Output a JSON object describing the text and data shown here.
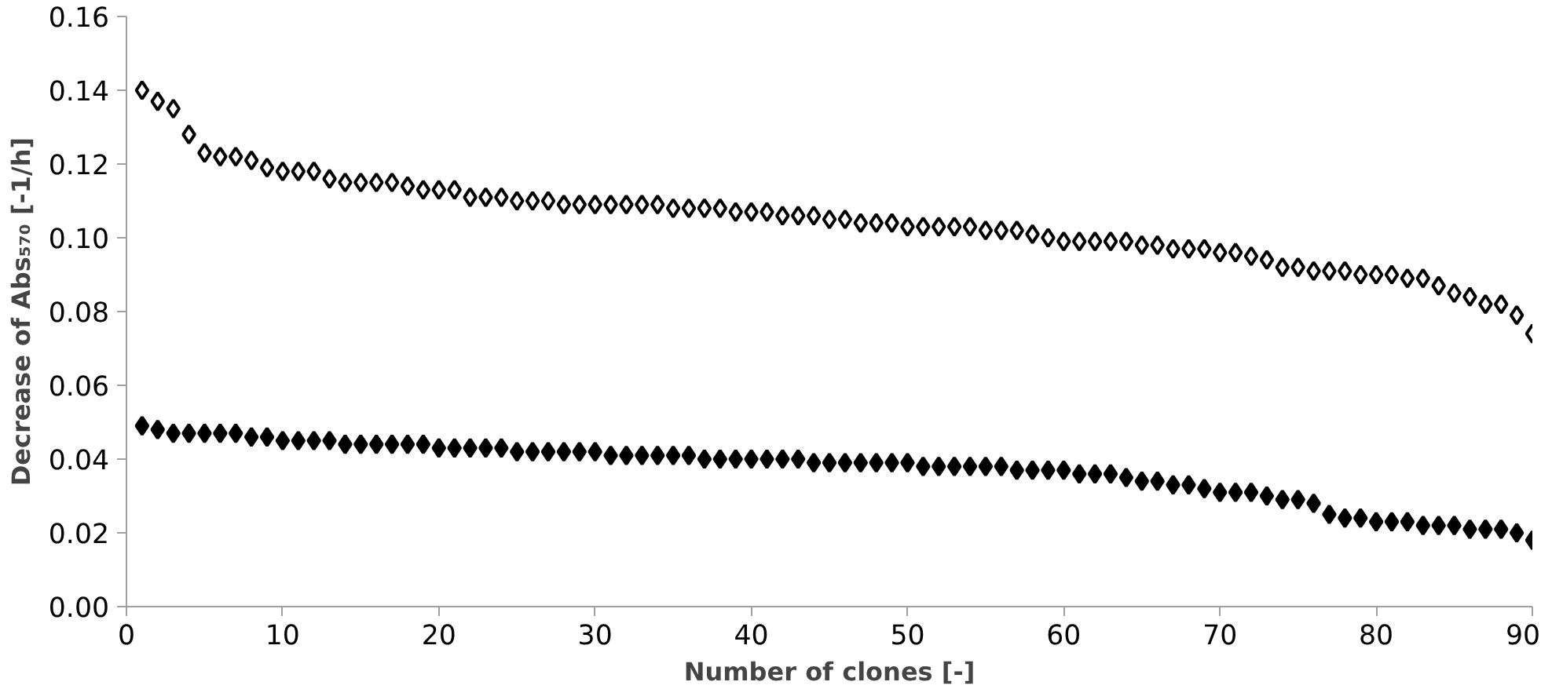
{
  "chart_data": {
    "type": "scatter",
    "xlabel": "Number of clones [-]",
    "ylabel": "Decrease of Abs₅₇₀ [-1/h]",
    "x": [
      1,
      2,
      3,
      4,
      5,
      6,
      7,
      8,
      9,
      10,
      11,
      12,
      13,
      14,
      15,
      16,
      17,
      18,
      19,
      20,
      21,
      22,
      23,
      24,
      25,
      26,
      27,
      28,
      29,
      30,
      31,
      32,
      33,
      34,
      35,
      36,
      37,
      38,
      39,
      40,
      41,
      42,
      43,
      44,
      45,
      46,
      47,
      48,
      49,
      50,
      51,
      52,
      53,
      54,
      55,
      56,
      57,
      58,
      59,
      60,
      61,
      62,
      63,
      64,
      65,
      66,
      67,
      68,
      69,
      70,
      71,
      72,
      73,
      74,
      75,
      76,
      77,
      78,
      79,
      80,
      81,
      82,
      83,
      84,
      85,
      86,
      87,
      88,
      89,
      90
    ],
    "series": [
      {
        "color": "#000000",
        "values": [
          0.14,
          0.137,
          0.135,
          0.128,
          0.123,
          0.122,
          0.122,
          0.121,
          0.119,
          0.118,
          0.118,
          0.118,
          0.116,
          0.115,
          0.115,
          0.115,
          0.115,
          0.114,
          0.113,
          0.113,
          0.113,
          0.111,
          0.111,
          0.111,
          0.11,
          0.11,
          0.11,
          0.109,
          0.109,
          0.109,
          0.109,
          0.109,
          0.109,
          0.109,
          0.108,
          0.108,
          0.108,
          0.108,
          0.107,
          0.107,
          0.107,
          0.106,
          0.106,
          0.106,
          0.105,
          0.105,
          0.104,
          0.104,
          0.104,
          0.103,
          0.103,
          0.103,
          0.103,
          0.103,
          0.102,
          0.102,
          0.102,
          0.101,
          0.1,
          0.099,
          0.099,
          0.099,
          0.099,
          0.099,
          0.098,
          0.098,
          0.097,
          0.097,
          0.097,
          0.096,
          0.096,
          0.095,
          0.094,
          0.092,
          0.092,
          0.091,
          0.091,
          0.091,
          0.09,
          0.09,
          0.09,
          0.089,
          0.089,
          0.087,
          0.085,
          0.084,
          0.082,
          0.082,
          0.079,
          0.074
        ]
      },
      {
        "color": "#000000",
        "values": [
          0.049,
          0.048,
          0.047,
          0.047,
          0.047,
          0.047,
          0.047,
          0.046,
          0.046,
          0.045,
          0.045,
          0.045,
          0.045,
          0.044,
          0.044,
          0.044,
          0.044,
          0.044,
          0.044,
          0.043,
          0.043,
          0.043,
          0.043,
          0.043,
          0.042,
          0.042,
          0.042,
          0.042,
          0.042,
          0.042,
          0.041,
          0.041,
          0.041,
          0.041,
          0.041,
          0.041,
          0.04,
          0.04,
          0.04,
          0.04,
          0.04,
          0.04,
          0.04,
          0.039,
          0.039,
          0.039,
          0.039,
          0.039,
          0.039,
          0.039,
          0.038,
          0.038,
          0.038,
          0.038,
          0.038,
          0.038,
          0.037,
          0.037,
          0.037,
          0.037,
          0.036,
          0.036,
          0.036,
          0.035,
          0.034,
          0.034,
          0.033,
          0.033,
          0.032,
          0.031,
          0.031,
          0.031,
          0.03,
          0.029,
          0.029,
          0.028,
          0.025,
          0.024,
          0.024,
          0.023,
          0.023,
          0.023,
          0.022,
          0.022,
          0.022,
          0.021,
          0.021,
          0.021,
          0.02,
          0.018
        ]
      }
    ],
    "marker": "diamond",
    "xlim": [
      0,
      90
    ],
    "ylim": [
      0,
      0.16
    ],
    "xticks": [
      0,
      10,
      20,
      30,
      40,
      50,
      60,
      70,
      80,
      90
    ],
    "yticks": [
      {
        "value": 0,
        "label": "0.00"
      },
      {
        "value": 0.02,
        "label": "0.02"
      },
      {
        "value": 0.04,
        "label": "0.04"
      },
      {
        "value": 0.06,
        "label": "0.06"
      },
      {
        "value": 0.08,
        "label": "0.08"
      },
      {
        "value": 0.1,
        "label": "0.10"
      },
      {
        "value": 0.12,
        "label": "0.12"
      },
      {
        "value": 0.14,
        "label": "0.14"
      },
      {
        "value": 0.16,
        "label": "0.16"
      }
    ],
    "grid": false
  }
}
